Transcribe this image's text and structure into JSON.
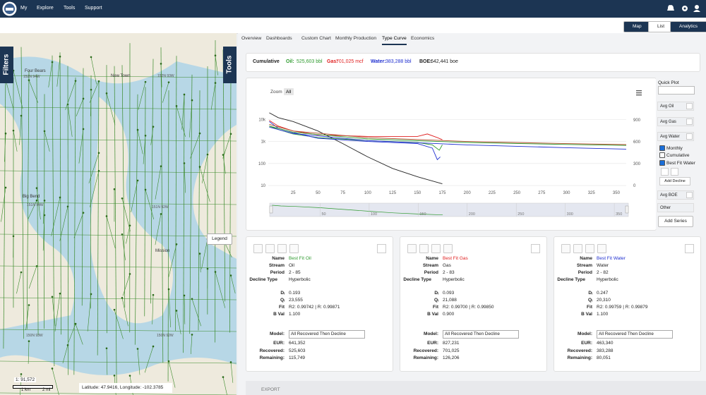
{
  "header": {
    "menu": [
      "My",
      "Explore",
      "Tools",
      "Support"
    ]
  },
  "view_buttons": [
    "Map",
    "List",
    "Analytics"
  ],
  "map": {
    "side_tabs": [
      "Filters",
      "Tools"
    ],
    "place_labels": [
      "Four Bears",
      "New Town",
      "Big Bend",
      "Mission"
    ],
    "grid_labels": [
      "152N 94W",
      "152N 93W",
      "151N 94W",
      "151N 92W",
      "150N 93W",
      "150N 92W"
    ],
    "legend": "Legend",
    "scale": "1: 91,572",
    "scale_units": [
      "1 km",
      "2 mi"
    ],
    "coordinates": "Latitude: 47.9416, Longitude: -102.3785"
  },
  "tabs": {
    "items": [
      "Overview",
      "Dashboards",
      "Custom Chart",
      "Monthly Production",
      "Type Curve",
      "Economics"
    ],
    "active": 4
  },
  "cumulative": {
    "label": "Cumulative",
    "items": [
      {
        "label": "Oil:",
        "value": "525,603 bbl",
        "color": "#2e9a2e"
      },
      {
        "label": "Gas:",
        "value": "701,025 mcf",
        "color": "#e02020"
      },
      {
        "label": "Water:",
        "value": "383,288 bbl",
        "color": "#1f2fd0"
      },
      {
        "label": "BOE:",
        "value": "642,441 boe",
        "color": "#222222"
      }
    ]
  },
  "type_curve": {
    "type": "line",
    "zoom_label": "Zoom",
    "zoom_button": "All",
    "xlim": [
      0,
      360
    ],
    "xticks": [
      25,
      50,
      75,
      100,
      125,
      150,
      175,
      200,
      225,
      250,
      275,
      300,
      325,
      350
    ],
    "ylim": [
      6,
      60000
    ],
    "log_y": true,
    "yticks": [
      10,
      100,
      {
        "value": 1000,
        "label": "1k"
      },
      {
        "value": 10000,
        "label": "10k"
      }
    ],
    "y2lim": [
      -70,
      1140
    ],
    "y2ticks": [
      0,
      300,
      600,
      900
    ],
    "grid": true,
    "series": [
      {
        "color": "#222222",
        "x": [
          1,
          10,
          25,
          50,
          75,
          100,
          125,
          150,
          175
        ],
        "values": [
          20000,
          12000,
          8000,
          3000,
          800,
          200,
          60,
          25,
          12
        ]
      },
      {
        "color": "#e02020",
        "x": [
          1,
          10,
          25,
          50,
          100,
          150,
          160,
          170,
          175
        ],
        "values": [
          9000,
          5000,
          3000,
          2000,
          1700,
          1700,
          2200,
          1500,
          1200
        ]
      },
      {
        "color": "#2e9a2e",
        "x": [
          1,
          10,
          25,
          50,
          100,
          150,
          165,
          172,
          175
        ],
        "values": [
          5000,
          3500,
          2200,
          1500,
          1100,
          900,
          700,
          400,
          700
        ]
      },
      {
        "color": "#1f2fd0",
        "x": [
          1,
          10,
          25,
          50,
          100,
          150,
          165,
          170,
          173
        ],
        "values": [
          8000,
          4000,
          2500,
          1400,
          1000,
          800,
          500,
          150,
          200
        ]
      },
      {
        "color": "#b04a2a",
        "x": [
          1,
          25,
          100,
          200,
          300,
          360
        ],
        "values": [
          6000,
          3000,
          1500,
          1000,
          800,
          720
        ]
      },
      {
        "color": "#2e9a2e",
        "x": [
          1,
          25,
          100,
          200,
          300,
          360
        ],
        "values": [
          5000,
          2600,
          1300,
          900,
          730,
          660
        ]
      },
      {
        "color": "#1f2fd0",
        "x": [
          1,
          25,
          100,
          200,
          300,
          360
        ],
        "values": [
          4500,
          2300,
          1100,
          700,
          520,
          450
        ]
      }
    ],
    "navigator_xticks": [
      50,
      100,
      150,
      200,
      250,
      300,
      350
    ]
  },
  "quick_plot": {
    "title": "Quick Plot",
    "averages": [
      "Avg Oil",
      "Avg Gas",
      "Avg Water"
    ],
    "options": [
      {
        "label": "Monthly",
        "checked": true
      },
      {
        "label": "Cumulative",
        "checked": false
      },
      {
        "label": "Best Fit Water",
        "checked": true
      }
    ],
    "add_decline": "Add Decline",
    "extra": [
      "Avg BOE",
      "Other"
    ],
    "add_series": "Add Series"
  },
  "card_labels": {
    "name": "Name",
    "stream": "Stream",
    "period": "Period",
    "decline_type": "Decline Type",
    "di": "Dᵢ",
    "qi": "Qᵢ",
    "fit": "Fit",
    "b_val": "B Val",
    "model": "Model:",
    "eur": "EUR:",
    "recovered": "Recovered:",
    "remaining": "Remaining:"
  },
  "cards": [
    {
      "name": "Best Fit Oil",
      "name_color": "#2e9a2e",
      "stream": "Oil",
      "period": "2 - 85",
      "decline_type": "Hyperbolic",
      "di": "0.193",
      "qi": "23,555",
      "fit": "R2: 0.99742 | R: 0.99871",
      "b_val": "1.100",
      "model": "All Recovered Then Decline",
      "eur": "641,352",
      "recovered": "525,603",
      "remaining": "115,749"
    },
    {
      "name": "Best Fit Gas",
      "name_color": "#e02020",
      "stream": "Gas",
      "period": "2 - 83",
      "decline_type": "Hyperbolic",
      "di": "0.093",
      "qi": "21,088",
      "fit": "R2: 0.99700 | R: 0.99850",
      "b_val": "0.900",
      "model": "All Recovered Then Decline",
      "eur": "827,231",
      "recovered": "701,025",
      "remaining": "126,206"
    },
    {
      "name": "Best Fit Water",
      "name_color": "#1f2fd0",
      "stream": "Water",
      "period": "2 - 82",
      "decline_type": "Hyperbolic",
      "di": "0.247",
      "qi": "20,310",
      "fit": "R2: 0.99759 | R: 0.99879",
      "b_val": "1.100",
      "model": "All Recovered Then Decline",
      "eur": "463,340",
      "recovered": "383,288",
      "remaining": "80,051"
    }
  ],
  "export": "EXPORT"
}
